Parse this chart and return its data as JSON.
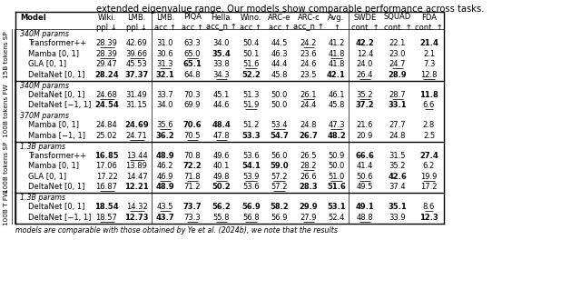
{
  "title_text": "extended eigenvalue range. Our models show comparable performance across tasks.",
  "sections": [
    {
      "side_label": "15B tokens SP",
      "subsections": [
        {
          "sub_header": "340M params",
          "rows": [
            {
              "model": "Transformer++",
              "values": [
                "28.39",
                "42.69",
                "31.0",
                "63.3",
                "34.0",
                "50.4",
                "44.5",
                "24.2",
                "41.2",
                "42.2",
                "22.1",
                "21.4"
              ],
              "bold": [
                false,
                false,
                false,
                false,
                false,
                false,
                false,
                false,
                false,
                true,
                false,
                true
              ],
              "underline": [
                true,
                false,
                false,
                false,
                false,
                false,
                false,
                true,
                false,
                false,
                false,
                false
              ]
            },
            {
              "model": "Mamba [0, 1]",
              "values": [
                "28.39",
                "39.66",
                "30.6",
                "65.0",
                "35.4",
                "50.1",
                "46.3",
                "23.6",
                "41.8",
                "12.4",
                "23.0",
                "2.1"
              ],
              "bold": [
                false,
                false,
                false,
                false,
                true,
                false,
                false,
                false,
                false,
                false,
                false,
                false
              ],
              "underline": [
                true,
                true,
                false,
                true,
                false,
                false,
                false,
                false,
                true,
                false,
                false,
                false
              ]
            },
            {
              "model": "GLA [0, 1]",
              "values": [
                "29.47",
                "45.53",
                "31.3",
                "65.1",
                "33.8",
                "51.6",
                "44.4",
                "24.6",
                "41.8",
                "24.0",
                "24.7",
                "7.3"
              ],
              "bold": [
                false,
                false,
                false,
                true,
                false,
                false,
                false,
                false,
                false,
                false,
                false,
                false
              ],
              "underline": [
                false,
                false,
                true,
                false,
                false,
                true,
                false,
                false,
                false,
                false,
                true,
                false
              ]
            },
            {
              "model": "DeltaNet [0, 1]",
              "values": [
                "28.24",
                "37.37",
                "32.1",
                "64.8",
                "34.3",
                "52.2",
                "45.8",
                "23.5",
                "42.1",
                "26.4",
                "28.9",
                "12.8"
              ],
              "bold": [
                true,
                true,
                true,
                false,
                false,
                true,
                false,
                false,
                true,
                false,
                true,
                false
              ],
              "underline": [
                false,
                false,
                false,
                false,
                true,
                false,
                false,
                false,
                false,
                true,
                false,
                true
              ]
            }
          ]
        }
      ]
    },
    {
      "side_label": "100B tokens FW",
      "subsections": [
        {
          "sub_header": "340M params",
          "rows": [
            {
              "model": "DeltaNet [0, 1]",
              "values": [
                "24.68",
                "31.49",
                "33.7",
                "70.3",
                "45.1",
                "51.3",
                "50.0",
                "26.1",
                "46.1",
                "35.2",
                "28.7",
                "11.8"
              ],
              "bold": [
                false,
                false,
                false,
                false,
                false,
                false,
                false,
                false,
                false,
                false,
                false,
                true
              ],
              "underline": [
                true,
                false,
                false,
                false,
                false,
                false,
                false,
                true,
                false,
                true,
                true,
                false
              ]
            },
            {
              "model": "DeltaNet [−1, 1]",
              "values": [
                "24.54",
                "31.15",
                "34.0",
                "69.9",
                "44.6",
                "51.9",
                "50.0",
                "24.4",
                "45.8",
                "37.2",
                "33.1",
                "6.6"
              ],
              "bold": [
                true,
                false,
                false,
                false,
                false,
                false,
                false,
                false,
                false,
                true,
                true,
                false
              ],
              "underline": [
                false,
                false,
                false,
                false,
                false,
                true,
                false,
                false,
                false,
                false,
                false,
                true
              ]
            }
          ]
        },
        {
          "sub_header": "370M params",
          "rows": [
            {
              "model": "Mamba [0, 1]",
              "values": [
                "24.84",
                "24.69",
                "35.6",
                "70.6",
                "48.4",
                "51.2",
                "53.4",
                "24.8",
                "47.3",
                "21.6",
                "27.7",
                "2.8"
              ],
              "bold": [
                false,
                true,
                false,
                true,
                true,
                false,
                false,
                false,
                false,
                false,
                false,
                false
              ],
              "underline": [
                false,
                false,
                true,
                false,
                false,
                false,
                true,
                false,
                true,
                false,
                false,
                false
              ]
            },
            {
              "model": "Mamba [−1, 1]",
              "values": [
                "25.02",
                "24.71",
                "36.2",
                "70.5",
                "47.8",
                "53.3",
                "54.7",
                "26.7",
                "48.2",
                "20.9",
                "24.8",
                "2.5"
              ],
              "bold": [
                false,
                false,
                true,
                false,
                false,
                true,
                true,
                true,
                true,
                false,
                false,
                false
              ],
              "underline": [
                false,
                true,
                false,
                true,
                true,
                false,
                false,
                false,
                false,
                false,
                false,
                false
              ]
            }
          ]
        }
      ]
    },
    {
      "side_label": "100B tokens SP",
      "subsections": [
        {
          "sub_header": "1.3B params",
          "rows": [
            {
              "model": "Transformer++",
              "values": [
                "16.85",
                "13.44",
                "48.9",
                "70.8",
                "49.6",
                "53.6",
                "56.0",
                "26.5",
                "50.9",
                "66.6",
                "31.5",
                "27.4"
              ],
              "bold": [
                true,
                false,
                true,
                false,
                false,
                false,
                false,
                false,
                false,
                true,
                false,
                true
              ],
              "underline": [
                false,
                true,
                false,
                false,
                false,
                false,
                false,
                false,
                false,
                false,
                false,
                false
              ]
            },
            {
              "model": "Mamba [0, 1]",
              "values": [
                "17.06",
                "13.89",
                "46.2",
                "72.2",
                "40.1",
                "54.1",
                "59.0",
                "28.2",
                "50.0",
                "41.4",
                "35.2",
                "6.2"
              ],
              "bold": [
                false,
                false,
                false,
                true,
                false,
                true,
                true,
                false,
                false,
                false,
                false,
                false
              ],
              "underline": [
                false,
                false,
                false,
                false,
                false,
                false,
                false,
                true,
                false,
                false,
                false,
                false
              ]
            },
            {
              "model": "GLA [0, 1]",
              "values": [
                "17.22",
                "14.47",
                "46.9",
                "71.8",
                "49.8",
                "53.9",
                "57.2",
                "26.6",
                "51.0",
                "50.6",
                "42.6",
                "19.9"
              ],
              "bold": [
                false,
                false,
                false,
                false,
                false,
                false,
                false,
                false,
                false,
                false,
                true,
                false
              ],
              "underline": [
                false,
                false,
                true,
                true,
                true,
                true,
                true,
                false,
                true,
                true,
                false,
                true
              ]
            },
            {
              "model": "DeltaNet [0, 1]",
              "values": [
                "16.87",
                "12.21",
                "48.9",
                "71.2",
                "50.2",
                "53.6",
                "57.2",
                "28.3",
                "51.6",
                "49.5",
                "37.4",
                "17.2"
              ],
              "bold": [
                false,
                true,
                true,
                false,
                true,
                false,
                false,
                true,
                true,
                false,
                false,
                false
              ],
              "underline": [
                true,
                false,
                false,
                false,
                false,
                false,
                true,
                false,
                false,
                false,
                false,
                false
              ]
            }
          ]
        }
      ]
    },
    {
      "side_label": "100B T FW",
      "subsections": [
        {
          "sub_header": "1.3B params",
          "rows": [
            {
              "model": "DeltaNet [0, 1]",
              "values": [
                "18.54",
                "14.32",
                "43.5",
                "73.7",
                "56.2",
                "56.9",
                "58.2",
                "29.9",
                "53.1",
                "49.1",
                "35.1",
                "8.6"
              ],
              "bold": [
                true,
                false,
                false,
                true,
                true,
                true,
                true,
                true,
                true,
                true,
                true,
                false
              ],
              "underline": [
                false,
                true,
                true,
                false,
                false,
                false,
                false,
                false,
                false,
                false,
                false,
                true
              ]
            },
            {
              "model": "DeltaNet [−1, 1]",
              "values": [
                "18.57",
                "12.73",
                "43.7",
                "73.3",
                "55.8",
                "56.8",
                "56.9",
                "27.9",
                "52.4",
                "48.8",
                "33.9",
                "12.3"
              ],
              "bold": [
                false,
                true,
                true,
                false,
                false,
                false,
                false,
                false,
                false,
                false,
                false,
                true
              ],
              "underline": [
                true,
                false,
                false,
                true,
                true,
                true,
                false,
                true,
                false,
                true,
                false,
                false
              ]
            }
          ]
        }
      ]
    }
  ],
  "footnote": "models are comparable with those obtained by Ye et al. (2024b), we note that the results"
}
